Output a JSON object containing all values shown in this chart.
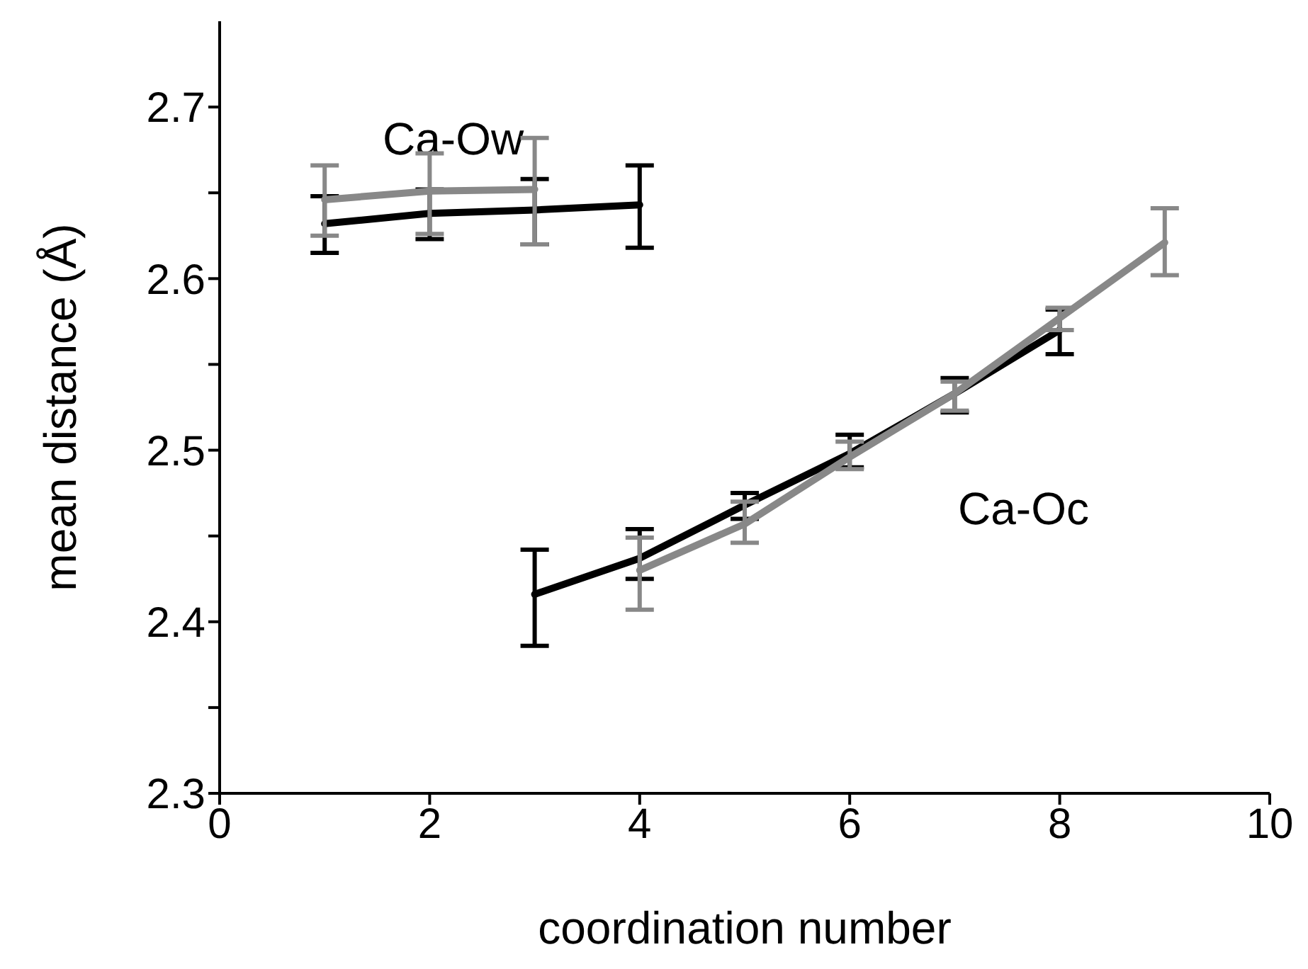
{
  "chart_data": {
    "type": "line",
    "xlabel": "coordination number",
    "ylabel": "mean distance (Å)",
    "xlim": [
      0,
      10
    ],
    "xticks": [
      0,
      2,
      4,
      6,
      8,
      10
    ],
    "ylim": [
      2.3,
      2.75
    ],
    "yticks": [
      2.3,
      {
        "value": 2.35,
        "label": null
      },
      2.4,
      {
        "value": 2.45,
        "label": null
      },
      2.5,
      {
        "value": 2.55,
        "label": null
      },
      2.6,
      {
        "value": 2.65,
        "label": null
      },
      2.7
    ],
    "grid": false,
    "marker": "none",
    "line_style": "solid",
    "annotations": [
      "Ca-Ow",
      "Ca-Oc"
    ],
    "series": [
      {
        "color": "#000000",
        "x": [
          1,
          2,
          3,
          4
        ],
        "values": [
          2.632,
          2.638,
          2.64,
          2.643
        ],
        "errors": [
          [
            2.615,
            2.648
          ],
          [
            2.623,
            2.652
          ],
          [
            2.62,
            2.658
          ],
          [
            2.618,
            2.666
          ]
        ]
      },
      {
        "color": "#888888",
        "x": [
          1,
          2,
          3
        ],
        "values": [
          2.646,
          2.651,
          2.652
        ],
        "errors": [
          [
            2.625,
            2.666
          ],
          [
            2.626,
            2.673
          ],
          [
            2.62,
            2.682
          ]
        ]
      },
      {
        "color": "#000000",
        "x": [
          3,
          4,
          5,
          6,
          7,
          8
        ],
        "values": [
          2.416,
          2.437,
          2.468,
          2.498,
          2.533,
          2.57
        ],
        "errors": [
          [
            2.386,
            2.442
          ],
          [
            2.425,
            2.454
          ],
          [
            2.46,
            2.475
          ],
          [
            2.49,
            2.509
          ],
          [
            2.522,
            2.542
          ],
          [
            2.556,
            2.582
          ]
        ]
      },
      {
        "color": "#888888",
        "x": [
          4,
          5,
          6,
          7,
          8,
          9
        ],
        "values": [
          2.43,
          2.457,
          2.496,
          2.533,
          2.577,
          2.621
        ],
        "errors": [
          [
            2.407,
            2.449
          ],
          [
            2.446,
            2.47
          ],
          [
            2.489,
            2.505
          ],
          [
            2.523,
            2.54
          ],
          [
            2.57,
            2.583
          ],
          [
            2.602,
            2.641
          ]
        ]
      }
    ]
  }
}
